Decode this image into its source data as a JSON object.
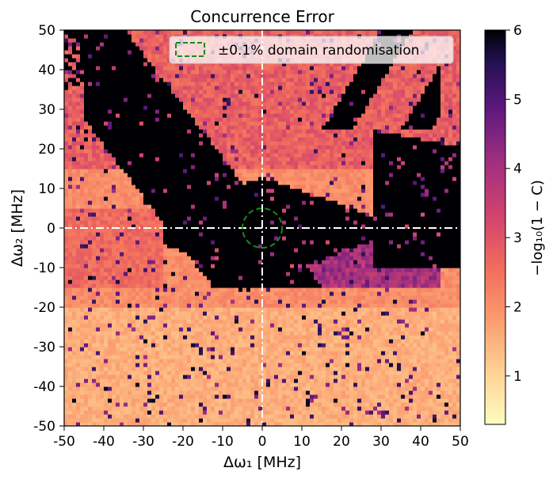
{
  "chart_data": {
    "type": "heatmap",
    "title": "Concurrence Error",
    "xlabel": "Δω₁ [MHz]",
    "ylabel": "Δω₂ [MHz]",
    "xlim": [
      -50,
      50
    ],
    "ylim": [
      -50,
      50
    ],
    "x_ticks": [
      "-50",
      "-40",
      "-30",
      "-20",
      "-10",
      "0",
      "10",
      "20",
      "30",
      "40",
      "50"
    ],
    "y_ticks": [
      "-50",
      "-40",
      "-30",
      "-20",
      "-10",
      "0",
      "10",
      "20",
      "30",
      "40",
      "50"
    ],
    "colorbar": {
      "label": "−log₁₀(1 − C)",
      "range": [
        0.3,
        6
      ],
      "ticks": [
        "1",
        "2",
        "3",
        "4",
        "5",
        "6"
      ],
      "colormap": "magma_r"
    },
    "legend": {
      "label": "±0.1% domain randomisation",
      "placement": "top-right",
      "color": "#1a8a1a"
    },
    "crosshair": {
      "x": 0,
      "y": 0,
      "color": "#ffffff"
    },
    "circle": {
      "cx": 0,
      "cy": 0,
      "r": 5,
      "color": "#1a8a1a"
    },
    "grid": false,
    "approximate_regions": {
      "high_fidelity_band": "black region (value ≈ 6) forming a diagonal band from upper-left to center, plus a triangular area near x=30..50, y=-10..20",
      "low_fidelity": "light pink/cream (value ≈ 1–2) across most of the lower half"
    }
  }
}
